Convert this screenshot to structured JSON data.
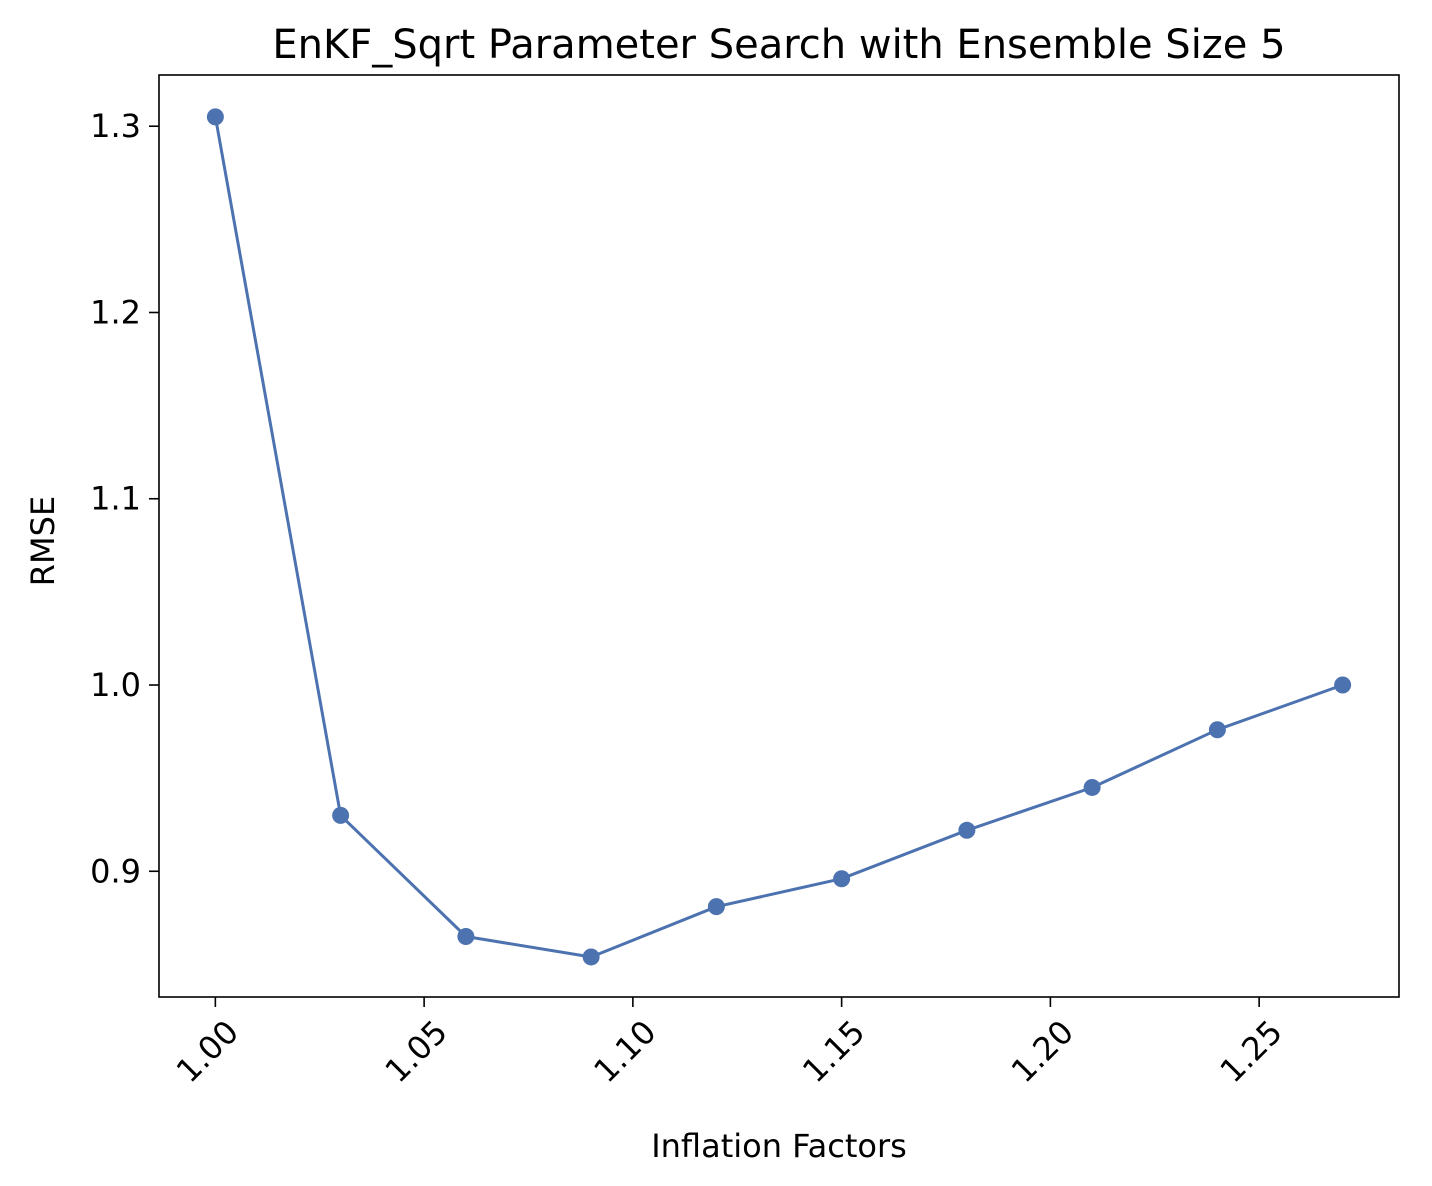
{
  "chart_data": {
    "type": "line",
    "title": "EnKF_Sqrt Parameter Search with Ensemble Size 5",
    "xlabel": "Inflation Factors",
    "ylabel": "RMSE",
    "x": [
      1.0,
      1.03,
      1.06,
      1.09,
      1.12,
      1.15,
      1.18,
      1.21,
      1.24,
      1.27
    ],
    "series": [
      {
        "values": [
          1.305,
          0.93,
          0.865,
          0.854,
          0.881,
          0.896,
          0.922,
          0.945,
          0.976,
          1.0
        ],
        "color": "#4c72b0"
      }
    ],
    "xlim": [
      0.9865,
      1.2835
    ],
    "ylim": [
      0.8325,
      1.3275
    ],
    "xticks": [
      1.0,
      1.05,
      1.1,
      1.15,
      1.2,
      1.25
    ],
    "xtick_labels": [
      "1.00",
      "1.05",
      "1.10",
      "1.15",
      "1.20",
      "1.25"
    ],
    "yticks": [
      0.9,
      1.0,
      1.1,
      1.2,
      1.3
    ],
    "ytick_labels": [
      "0.9",
      "1.0",
      "1.1",
      "1.2",
      "1.3"
    ],
    "xtick_rotation": 45,
    "grid": false,
    "legend": false,
    "marker": "circle"
  }
}
